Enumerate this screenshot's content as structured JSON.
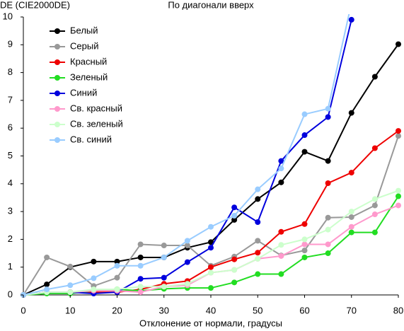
{
  "chart_data": {
    "type": "line",
    "title": "По диагонали вверх",
    "ylabel": "DE (CIE2000DE)",
    "xlabel": "Отклонение от нормали, градусы",
    "x": [
      0,
      5,
      10,
      15,
      20,
      25,
      30,
      35,
      40,
      45,
      50,
      55,
      60,
      65,
      70,
      75,
      80
    ],
    "xlim": [
      0,
      80
    ],
    "xticks": [
      0,
      10,
      20,
      30,
      40,
      50,
      60,
      70,
      80
    ],
    "ylim": [
      0,
      10
    ],
    "yticks": [
      0,
      1,
      2,
      3,
      4,
      5,
      6,
      7,
      8,
      9,
      10
    ],
    "grid": false,
    "legend": "upper left",
    "series": [
      {
        "name": "Белый",
        "color": "#000000",
        "values": [
          0,
          0.38,
          1.0,
          1.2,
          1.2,
          1.35,
          1.35,
          1.7,
          1.9,
          2.7,
          3.45,
          4.05,
          5.15,
          4.82,
          6.55,
          7.85,
          9.02
        ]
      },
      {
        "name": "Серый",
        "color": "#999999",
        "values": [
          0,
          1.35,
          1.02,
          0.32,
          0.62,
          1.82,
          1.78,
          1.78,
          1.05,
          1.38,
          1.95,
          1.42,
          1.6,
          2.78,
          2.8,
          3.22,
          5.72
        ]
      },
      {
        "name": "Красный",
        "color": "#ee0000",
        "values": [
          0,
          0.1,
          0.1,
          0.1,
          0.1,
          0.2,
          0.4,
          0.5,
          1.0,
          1.28,
          1.52,
          2.27,
          2.55,
          4.02,
          4.4,
          5.28,
          5.9
        ]
      },
      {
        "name": "Зеленый",
        "color": "#22dd22",
        "values": [
          0,
          0.05,
          0.05,
          0.15,
          0.2,
          0.15,
          0.22,
          0.25,
          0.25,
          0.45,
          0.75,
          0.75,
          1.35,
          1.5,
          2.25,
          2.25,
          3.55
        ]
      },
      {
        "name": "Синий",
        "color": "#0000dd",
        "values": [
          0,
          0.1,
          0.1,
          0.05,
          0.1,
          0.58,
          0.62,
          1.18,
          1.7,
          3.15,
          2.62,
          4.82,
          5.75,
          6.4,
          9.9,
          null,
          null
        ]
      },
      {
        "name": "Св. красный",
        "color": "#ff99cc",
        "values": [
          0,
          0.1,
          0.1,
          0.15,
          0.15,
          0.1,
          0.3,
          0.35,
          0.8,
          0.9,
          1.3,
          1.4,
          1.82,
          1.82,
          2.45,
          2.9,
          3.22
        ]
      },
      {
        "name": "Св. зеленый",
        "color": "#ccffcc",
        "values": [
          0,
          0.1,
          0.1,
          0.2,
          0.2,
          0.3,
          0.3,
          0.4,
          0.8,
          0.9,
          1.3,
          1.8,
          2.0,
          2.35,
          3.0,
          3.45,
          3.75
        ]
      },
      {
        "name": "Св. синий",
        "color": "#99ccff",
        "values": [
          0,
          0.2,
          0.35,
          0.6,
          1.05,
          1.05,
          1.35,
          1.95,
          2.45,
          2.85,
          3.8,
          4.55,
          6.5,
          6.7,
          10.5,
          null,
          null
        ]
      }
    ]
  }
}
